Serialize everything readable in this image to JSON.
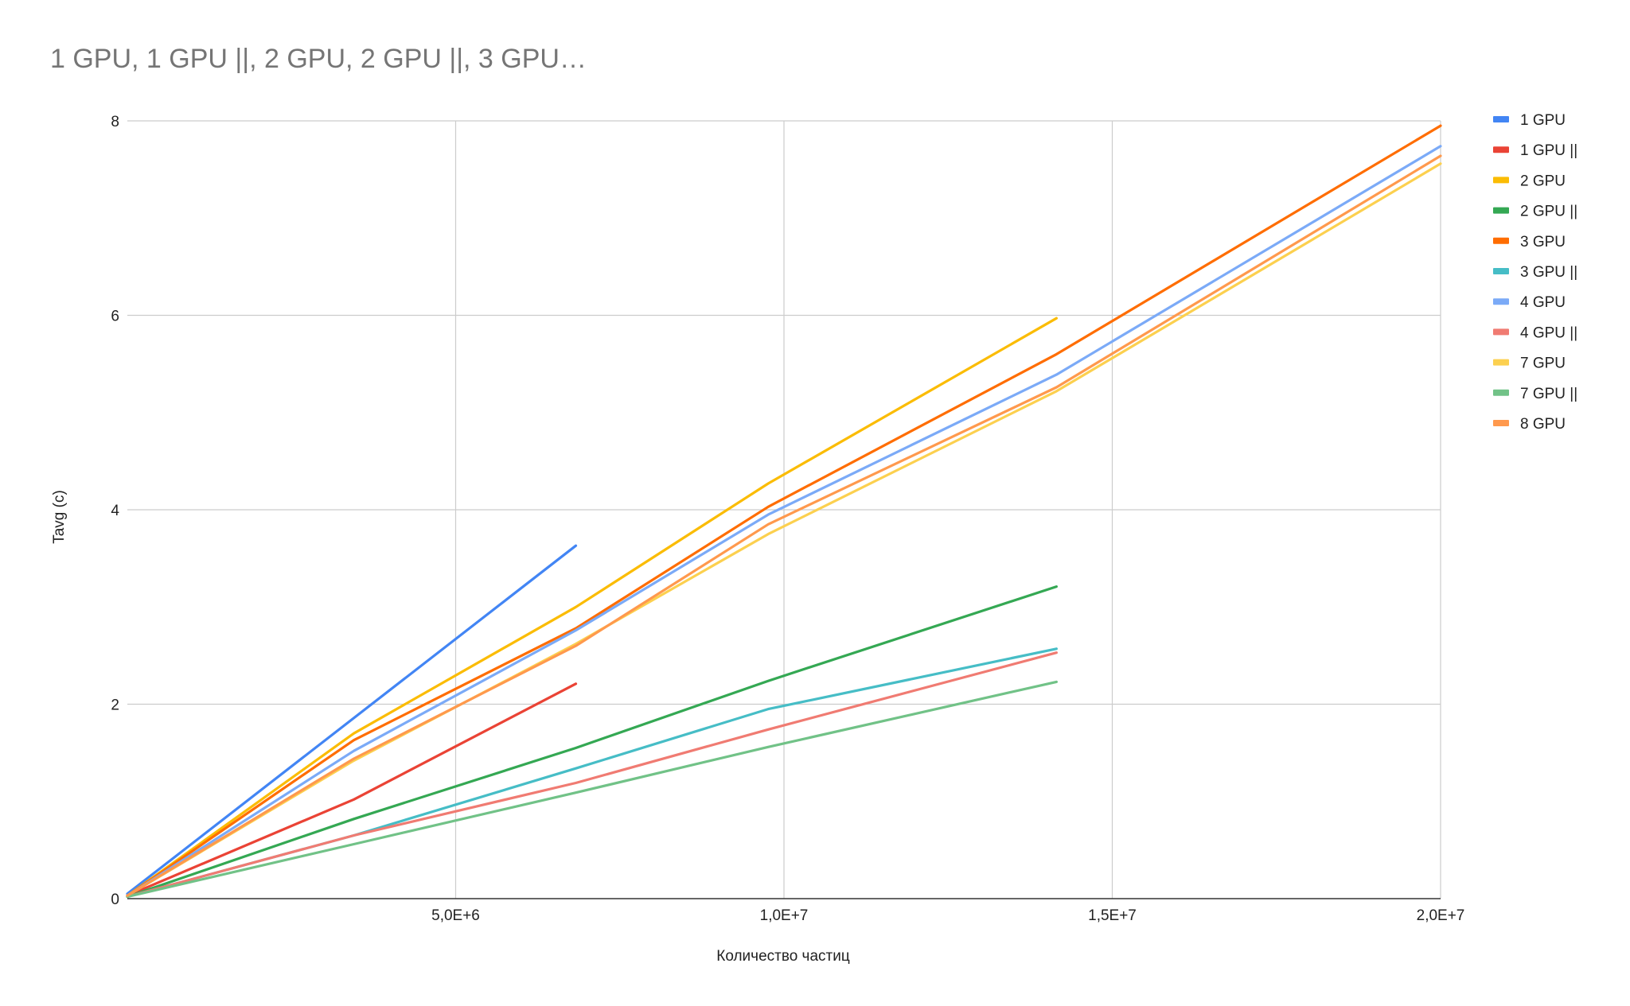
{
  "chart_data": {
    "type": "line",
    "title": "1 GPU, 1 GPU ||, 2 GPU, 2 GPU ||, 3 GPU…",
    "xlabel": "Количество частиц",
    "ylabel": "Tavg (c)",
    "xlim": [
      0,
      20000000
    ],
    "ylim": [
      0,
      8
    ],
    "x_ticks": [
      {
        "value": 5000000,
        "label": "5,0E+6"
      },
      {
        "value": 10000000,
        "label": "1,0E+7"
      },
      {
        "value": 15000000,
        "label": "1,5E+7"
      },
      {
        "value": 20000000,
        "label": "2,0E+7"
      }
    ],
    "y_ticks": [
      {
        "value": 0,
        "label": "0"
      },
      {
        "value": 2,
        "label": "2"
      },
      {
        "value": 4,
        "label": "4"
      },
      {
        "value": 6,
        "label": "6"
      },
      {
        "value": 8,
        "label": "8"
      }
    ],
    "grid": true,
    "legend_position": "right",
    "series": [
      {
        "name": "1 GPU",
        "color": "#4285f4",
        "x": [
          0,
          6830000
        ],
        "y": [
          0.05,
          3.63
        ]
      },
      {
        "name": "1 GPU ||",
        "color": "#ea4335",
        "x": [
          0,
          3450000,
          6830000
        ],
        "y": [
          0.03,
          1.02,
          2.21
        ]
      },
      {
        "name": "2 GPU",
        "color": "#fbbc04",
        "x": [
          0,
          3450000,
          6830000,
          9760000,
          14150000
        ],
        "y": [
          0.03,
          1.7,
          3.0,
          4.27,
          5.97
        ]
      },
      {
        "name": "2 GPU ||",
        "color": "#34a853",
        "x": [
          0,
          3450000,
          6830000,
          9760000,
          14150000
        ],
        "y": [
          0.02,
          0.82,
          1.55,
          2.24,
          3.21
        ]
      },
      {
        "name": "3 GPU",
        "color": "#ff6d01",
        "x": [
          0,
          3450000,
          6830000,
          9760000,
          14150000,
          20000000
        ],
        "y": [
          0.03,
          1.63,
          2.78,
          4.03,
          5.6,
          7.95
        ]
      },
      {
        "name": "3 GPU ||",
        "color": "#46bdc6",
        "x": [
          0,
          3450000,
          6830000,
          9760000,
          14150000
        ],
        "y": [
          0.02,
          0.65,
          1.34,
          1.95,
          2.57
        ]
      },
      {
        "name": "4 GPU",
        "color": "#7baaf7",
        "x": [
          0,
          3450000,
          6830000,
          9760000,
          14150000,
          20000000
        ],
        "y": [
          0.03,
          1.52,
          2.76,
          3.95,
          5.39,
          7.74
        ]
      },
      {
        "name": "4 GPU ||",
        "color": "#f07b72",
        "x": [
          0,
          3450000,
          6830000,
          9760000,
          14150000
        ],
        "y": [
          0.02,
          0.65,
          1.19,
          1.74,
          2.53
        ]
      },
      {
        "name": "7 GPU",
        "color": "#fcd04f",
        "x": [
          0,
          3450000,
          6830000,
          9760000,
          14150000,
          20000000
        ],
        "y": [
          0.03,
          1.42,
          2.62,
          3.75,
          5.22,
          7.56
        ]
      },
      {
        "name": "7 GPU ||",
        "color": "#71c287",
        "x": [
          0,
          3450000,
          6830000,
          9760000,
          14150000
        ],
        "y": [
          0.02,
          0.56,
          1.09,
          1.56,
          2.23
        ]
      },
      {
        "name": "8 GPU",
        "color": "#ff994d",
        "x": [
          0,
          3450000,
          6830000,
          9760000,
          14150000,
          20000000
        ],
        "y": [
          0.03,
          1.44,
          2.6,
          3.85,
          5.26,
          7.64
        ]
      }
    ]
  }
}
